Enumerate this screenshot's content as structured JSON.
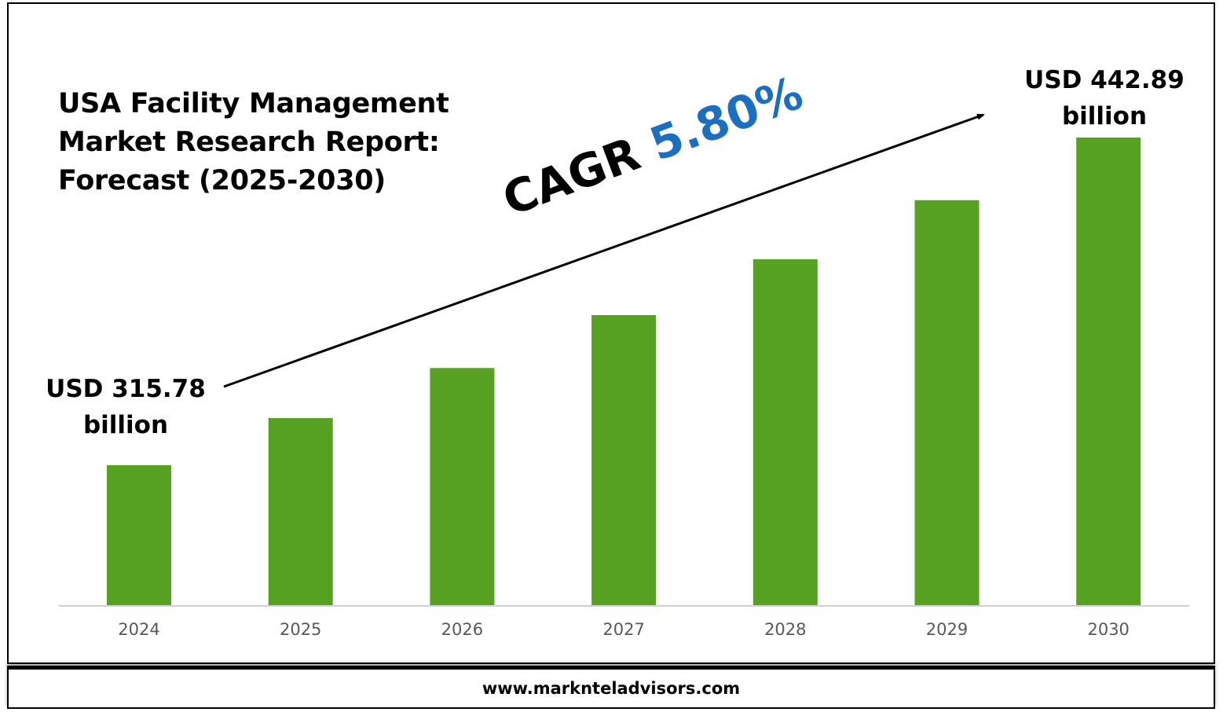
{
  "title_lines": [
    "USA Facility Management",
    "Market Research Report:",
    "Forecast (2025-2030)"
  ],
  "cagr": {
    "label": "CAGR",
    "value": "5.80%"
  },
  "callouts": {
    "start": {
      "value": "USD 315.78",
      "unit": "billion"
    },
    "end": {
      "value": "USD 442.89",
      "unit": "billion"
    }
  },
  "footer": {
    "website": "www.marknteladvisors.com"
  },
  "colors": {
    "bar": "#56a022",
    "cagr_value": "#1c6fbe",
    "axis": "#d0d0d0",
    "tick_label": "#595959"
  },
  "chart_data": {
    "type": "bar",
    "title": "USA Facility Management Market Research Report: Forecast (2025-2030)",
    "categories": [
      "2024",
      "2025",
      "2026",
      "2027",
      "2028",
      "2029",
      "2030"
    ],
    "values": [
      315.78,
      334.1,
      353.5,
      374.0,
      395.7,
      418.6,
      442.89
    ],
    "ylim": [
      0,
      480
    ],
    "grid": false,
    "legend": "none"
  }
}
